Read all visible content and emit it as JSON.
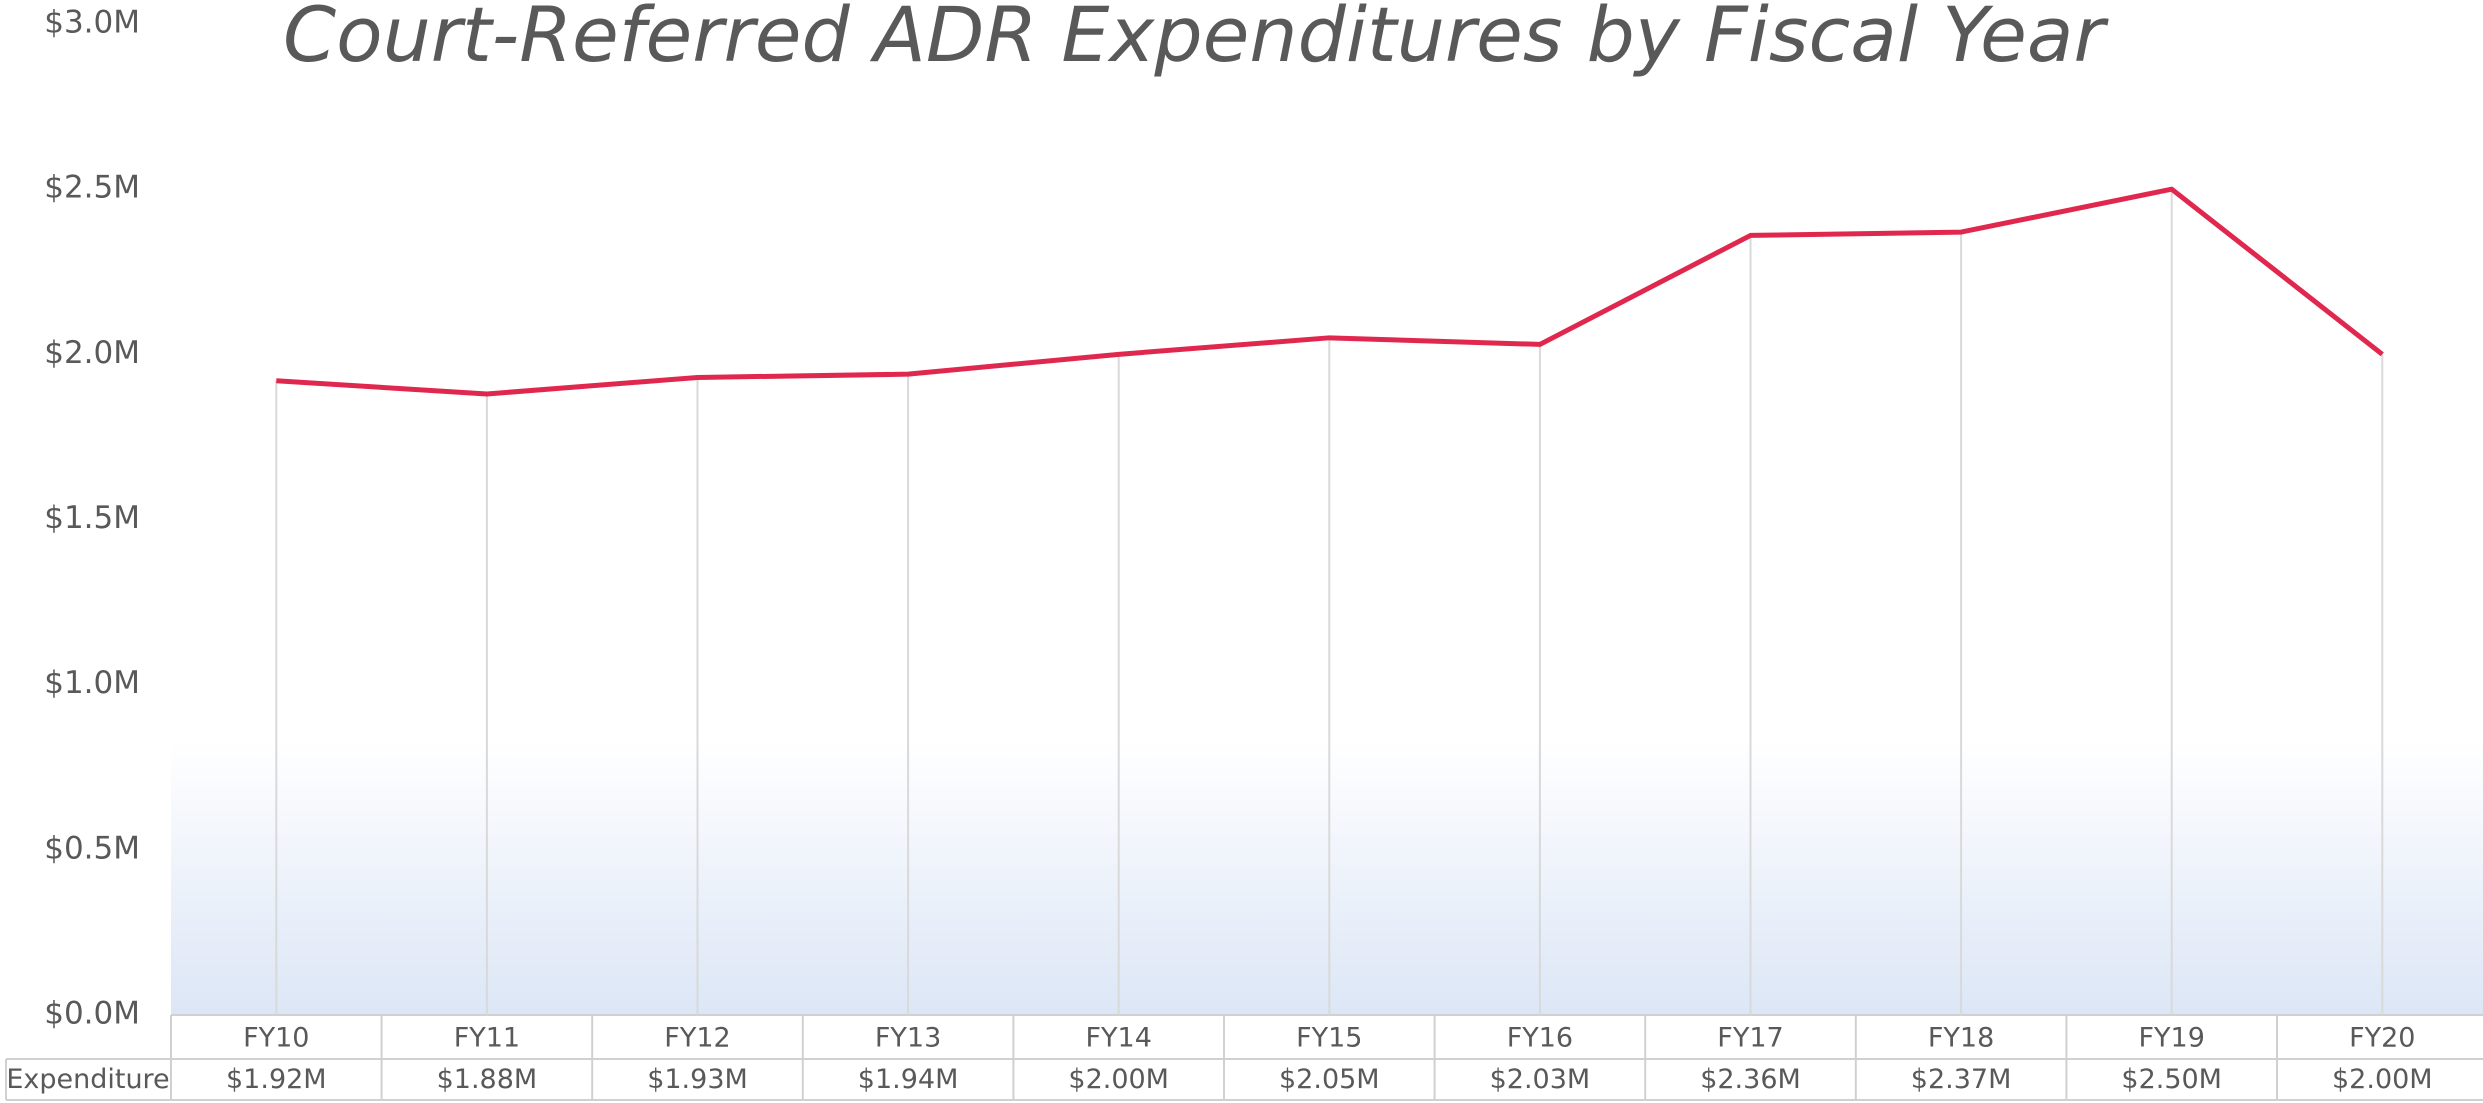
{
  "chart_data": {
    "type": "line",
    "title": "Court-Referred ADR Expenditures by Fiscal Year",
    "categories": [
      "FY10",
      "FY11",
      "FY12",
      "FY13",
      "FY14",
      "FY15",
      "FY16",
      "FY17",
      "FY18",
      "FY19",
      "FY20"
    ],
    "series": [
      {
        "name": "Expenditure",
        "color": "#e0284f",
        "values": [
          1.92,
          1.88,
          1.93,
          1.94,
          2.0,
          2.05,
          2.03,
          2.36,
          2.37,
          2.5,
          2.0
        ],
        "value_labels": [
          "$1.92M",
          "$1.88M",
          "$1.93M",
          "$1.94M",
          "$2.00M",
          "$2.05M",
          "$2.03M",
          "$2.36M",
          "$2.37M",
          "$2.50M",
          "$2.00M"
        ]
      }
    ],
    "ylim": [
      0,
      3
    ],
    "yticks": [
      {
        "value": 0,
        "label": "$0.0M"
      },
      {
        "value": 0.5,
        "label": "$0.5M"
      },
      {
        "value": 1,
        "label": "$1.0M"
      },
      {
        "value": 1.5,
        "label": "$1.5M"
      },
      {
        "value": 2,
        "label": "$2.0M"
      },
      {
        "value": 2.5,
        "label": "$2.5M"
      },
      {
        "value": 3,
        "label": "$3.0M"
      }
    ],
    "grid": true
  }
}
